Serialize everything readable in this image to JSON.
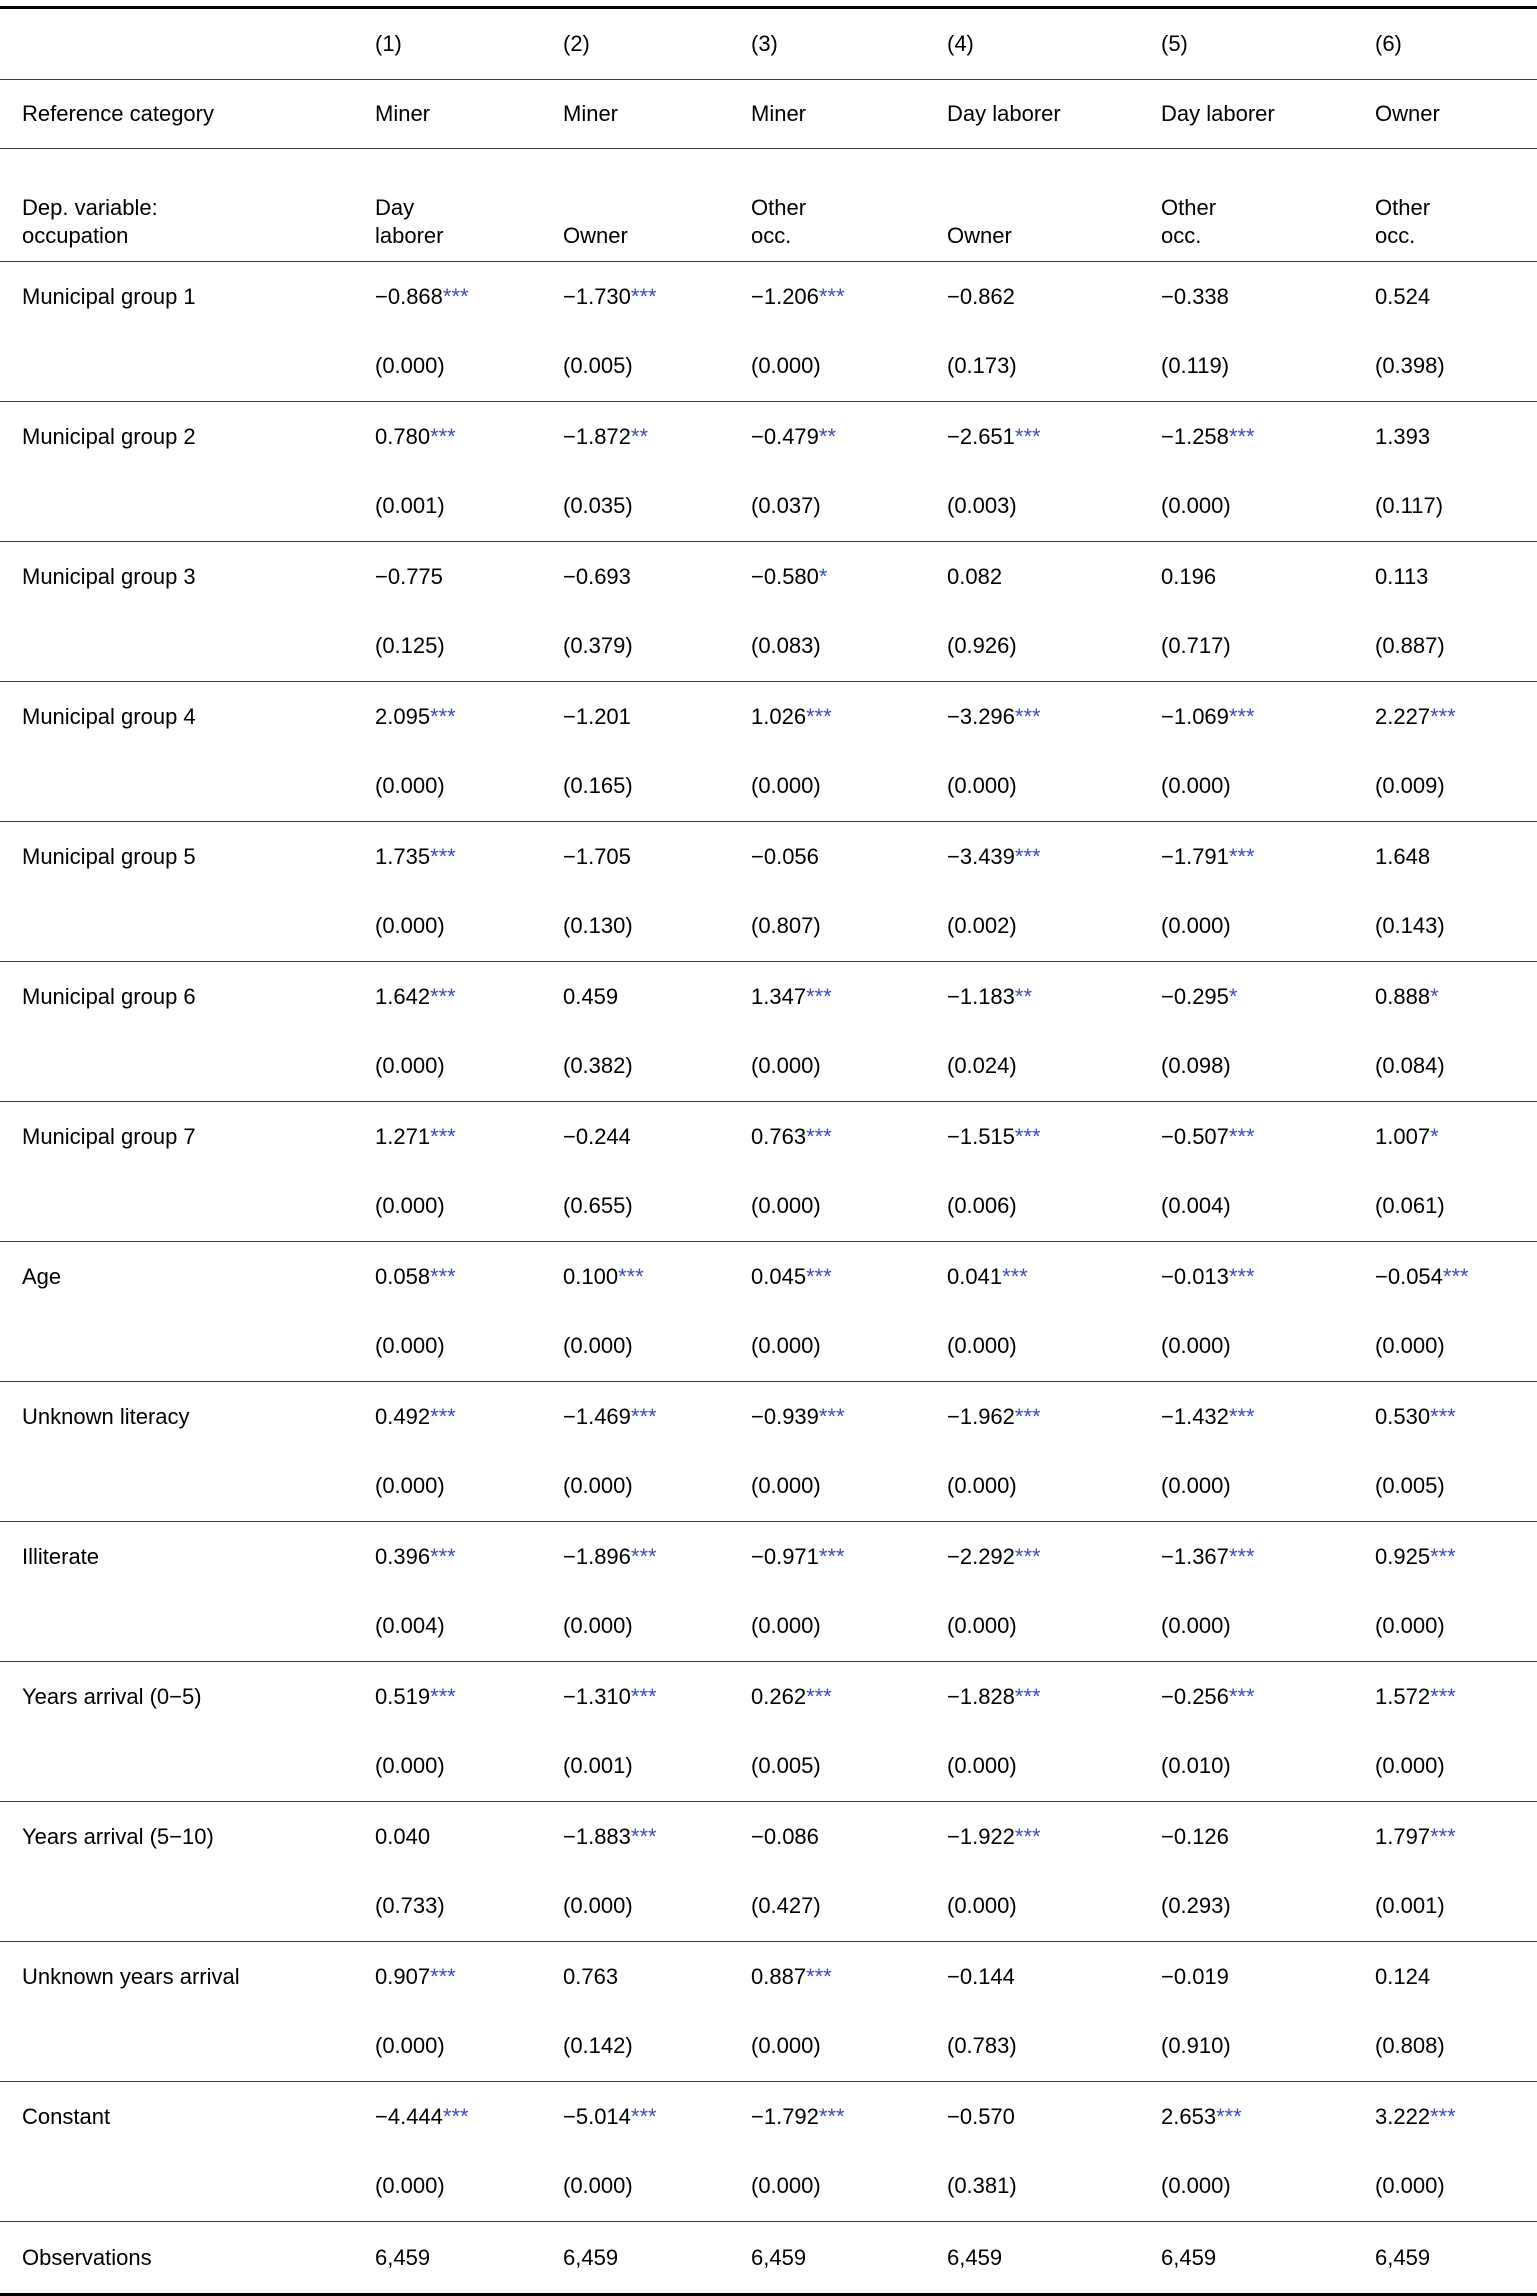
{
  "colors": {
    "star": "#3b4ac6",
    "text": "#000000",
    "background": "#ffffff",
    "rule_thin": "#3c3c3c",
    "rule_thick": "#000000"
  },
  "table": {
    "columns": [
      "(1)",
      "(2)",
      "(3)",
      "(4)",
      "(5)",
      "(6)"
    ],
    "reference": {
      "label": "Reference category",
      "values": [
        "Miner",
        "Miner",
        "Miner",
        "Day laborer",
        "Day laborer",
        "Owner"
      ]
    },
    "dep_variable": {
      "label": "Dep. variable:\noccupation",
      "values": [
        "Day\nlaborer",
        "Owner",
        "Other\nocc.",
        "Owner",
        "Other\nocc.",
        "Other\nocc."
      ]
    },
    "rows": [
      {
        "label": "Municipal group 1",
        "cells": [
          {
            "coef": "−0.868",
            "stars": "***",
            "p": "(0.000)"
          },
          {
            "coef": "−1.730",
            "stars": "***",
            "p": "(0.005)"
          },
          {
            "coef": "−1.206",
            "stars": "***",
            "p": "(0.000)"
          },
          {
            "coef": "−0.862",
            "stars": "",
            "p": "(0.173)"
          },
          {
            "coef": "−0.338",
            "stars": "",
            "p": "(0.119)"
          },
          {
            "coef": "0.524",
            "stars": "",
            "p": "(0.398)"
          }
        ]
      },
      {
        "label": "Municipal group 2",
        "cells": [
          {
            "coef": "0.780",
            "stars": "***",
            "p": "(0.001)"
          },
          {
            "coef": "−1.872",
            "stars": "**",
            "p": "(0.035)"
          },
          {
            "coef": "−0.479",
            "stars": "**",
            "p": "(0.037)"
          },
          {
            "coef": "−2.651",
            "stars": "***",
            "p": "(0.003)"
          },
          {
            "coef": "−1.258",
            "stars": "***",
            "p": "(0.000)"
          },
          {
            "coef": "1.393",
            "stars": "",
            "p": "(0.117)"
          }
        ]
      },
      {
        "label": "Municipal group 3",
        "cells": [
          {
            "coef": "−0.775",
            "stars": "",
            "p": "(0.125)"
          },
          {
            "coef": "−0.693",
            "stars": "",
            "p": "(0.379)"
          },
          {
            "coef": "−0.580",
            "stars": "*",
            "p": "(0.083)"
          },
          {
            "coef": "0.082",
            "stars": "",
            "p": "(0.926)"
          },
          {
            "coef": "0.196",
            "stars": "",
            "p": "(0.717)"
          },
          {
            "coef": "0.113",
            "stars": "",
            "p": "(0.887)"
          }
        ]
      },
      {
        "label": "Municipal group 4",
        "cells": [
          {
            "coef": "2.095",
            "stars": "***",
            "p": "(0.000)"
          },
          {
            "coef": "−1.201",
            "stars": "",
            "p": "(0.165)"
          },
          {
            "coef": "1.026",
            "stars": "***",
            "p": "(0.000)"
          },
          {
            "coef": "−3.296",
            "stars": "***",
            "p": "(0.000)"
          },
          {
            "coef": "−1.069",
            "stars": "***",
            "p": "(0.000)"
          },
          {
            "coef": "2.227",
            "stars": "***",
            "p": "(0.009)"
          }
        ]
      },
      {
        "label": "Municipal group 5",
        "cells": [
          {
            "coef": "1.735",
            "stars": "***",
            "p": "(0.000)"
          },
          {
            "coef": "−1.705",
            "stars": "",
            "p": "(0.130)"
          },
          {
            "coef": "−0.056",
            "stars": "",
            "p": "(0.807)"
          },
          {
            "coef": "−3.439",
            "stars": "***",
            "p": "(0.002)"
          },
          {
            "coef": "−1.791",
            "stars": "***",
            "p": "(0.000)"
          },
          {
            "coef": "1.648",
            "stars": "",
            "p": "(0.143)"
          }
        ]
      },
      {
        "label": "Municipal group 6",
        "cells": [
          {
            "coef": "1.642",
            "stars": "***",
            "p": "(0.000)"
          },
          {
            "coef": "0.459",
            "stars": "",
            "p": "(0.382)"
          },
          {
            "coef": "1.347",
            "stars": "***",
            "p": "(0.000)"
          },
          {
            "coef": "−1.183",
            "stars": "**",
            "p": "(0.024)"
          },
          {
            "coef": "−0.295",
            "stars": "*",
            "p": "(0.098)"
          },
          {
            "coef": "0.888",
            "stars": "*",
            "p": "(0.084)"
          }
        ]
      },
      {
        "label": "Municipal group 7",
        "cells": [
          {
            "coef": "1.271",
            "stars": "***",
            "p": "(0.000)"
          },
          {
            "coef": "−0.244",
            "stars": "",
            "p": "(0.655)"
          },
          {
            "coef": "0.763",
            "stars": "***",
            "p": "(0.000)"
          },
          {
            "coef": "−1.515",
            "stars": "***",
            "p": "(0.006)"
          },
          {
            "coef": "−0.507",
            "stars": "***",
            "p": "(0.004)"
          },
          {
            "coef": "1.007",
            "stars": "*",
            "p": "(0.061)"
          }
        ]
      },
      {
        "label": "Age",
        "cells": [
          {
            "coef": "0.058",
            "stars": "***",
            "p": "(0.000)"
          },
          {
            "coef": "0.100",
            "stars": "***",
            "p": "(0.000)"
          },
          {
            "coef": "0.045",
            "stars": "***",
            "p": "(0.000)"
          },
          {
            "coef": "0.041",
            "stars": "***",
            "p": "(0.000)"
          },
          {
            "coef": "−0.013",
            "stars": "***",
            "p": "(0.000)"
          },
          {
            "coef": "−0.054",
            "stars": "***",
            "p": "(0.000)"
          }
        ]
      },
      {
        "label": "Unknown literacy",
        "cells": [
          {
            "coef": "0.492",
            "stars": "***",
            "p": "(0.000)"
          },
          {
            "coef": "−1.469",
            "stars": "***",
            "p": "(0.000)"
          },
          {
            "coef": "−0.939",
            "stars": "***",
            "p": "(0.000)"
          },
          {
            "coef": "−1.962",
            "stars": "***",
            "p": "(0.000)"
          },
          {
            "coef": "−1.432",
            "stars": "***",
            "p": "(0.000)"
          },
          {
            "coef": "0.530",
            "stars": "***",
            "p": "(0.005)"
          }
        ]
      },
      {
        "label": "Illiterate",
        "cells": [
          {
            "coef": "0.396",
            "stars": "***",
            "p": "(0.004)"
          },
          {
            "coef": "−1.896",
            "stars": "***",
            "p": "(0.000)"
          },
          {
            "coef": "−0.971",
            "stars": "***",
            "p": "(0.000)"
          },
          {
            "coef": "−2.292",
            "stars": "***",
            "p": "(0.000)"
          },
          {
            "coef": "−1.367",
            "stars": "***",
            "p": "(0.000)"
          },
          {
            "coef": "0.925",
            "stars": "***",
            "p": "(0.000)"
          }
        ]
      },
      {
        "label": "Years arrival (0−5)",
        "cells": [
          {
            "coef": "0.519",
            "stars": "***",
            "p": "(0.000)"
          },
          {
            "coef": "−1.310",
            "stars": "***",
            "p": "(0.001)"
          },
          {
            "coef": "0.262",
            "stars": "***",
            "p": "(0.005)"
          },
          {
            "coef": "−1.828",
            "stars": "***",
            "p": "(0.000)"
          },
          {
            "coef": "−0.256",
            "stars": "***",
            "p": "(0.010)"
          },
          {
            "coef": "1.572",
            "stars": "***",
            "p": "(0.000)"
          }
        ]
      },
      {
        "label": "Years arrival (5−10)",
        "cells": [
          {
            "coef": "0.040",
            "stars": "",
            "p": "(0.733)"
          },
          {
            "coef": "−1.883",
            "stars": "***",
            "p": "(0.000)"
          },
          {
            "coef": "−0.086",
            "stars": "",
            "p": "(0.427)"
          },
          {
            "coef": "−1.922",
            "stars": "***",
            "p": "(0.000)"
          },
          {
            "coef": "−0.126",
            "stars": "",
            "p": "(0.293)"
          },
          {
            "coef": "1.797",
            "stars": "***",
            "p": "(0.001)"
          }
        ]
      },
      {
        "label": "Unknown years arrival",
        "cells": [
          {
            "coef": "0.907",
            "stars": "***",
            "p": "(0.000)"
          },
          {
            "coef": "0.763",
            "stars": "",
            "p": "(0.142)"
          },
          {
            "coef": "0.887",
            "stars": "***",
            "p": "(0.000)"
          },
          {
            "coef": "−0.144",
            "stars": "",
            "p": "(0.783)"
          },
          {
            "coef": "−0.019",
            "stars": "",
            "p": "(0.910)"
          },
          {
            "coef": "0.124",
            "stars": "",
            "p": "(0.808)"
          }
        ]
      },
      {
        "label": "Constant",
        "cells": [
          {
            "coef": "−4.444",
            "stars": "***",
            "p": "(0.000)"
          },
          {
            "coef": "−5.014",
            "stars": "***",
            "p": "(0.000)"
          },
          {
            "coef": "−1.792",
            "stars": "***",
            "p": "(0.000)"
          },
          {
            "coef": "−0.570",
            "stars": "",
            "p": "(0.381)"
          },
          {
            "coef": "2.653",
            "stars": "***",
            "p": "(0.000)"
          },
          {
            "coef": "3.222",
            "stars": "***",
            "p": "(0.000)"
          }
        ]
      }
    ],
    "observations": {
      "label": "Observations",
      "values": [
        "6,459",
        "6,459",
        "6,459",
        "6,459",
        "6,459",
        "6,459"
      ]
    }
  }
}
